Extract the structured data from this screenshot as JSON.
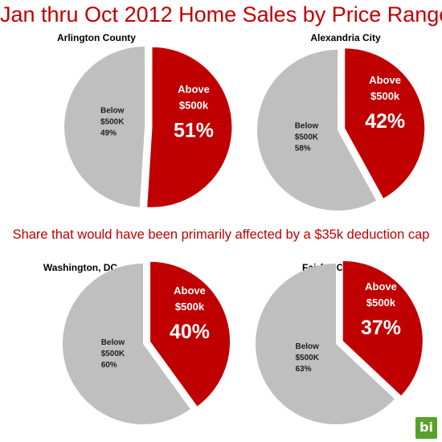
{
  "title": "Jan thru Oct 2012 Home Sales by Price Range",
  "subtitle": "Share that would have been primarily affected by a $35k deduction cap",
  "logo_text": "bi",
  "colors": {
    "above": "#c00000",
    "below": "#bfbfbf"
  },
  "chart_data": [
    {
      "type": "pie",
      "title": "Arlington County",
      "slices": [
        {
          "label_lines": [
            "Above",
            "$500k"
          ],
          "pct_label": "51%",
          "value": 51
        },
        {
          "label_lines": [
            "Below",
            "$500K"
          ],
          "pct_label": "49%",
          "value": 49
        }
      ]
    },
    {
      "type": "pie",
      "title": "Alexandria City",
      "slices": [
        {
          "label_lines": [
            "Above",
            "$500k"
          ],
          "pct_label": "42%",
          "value": 42
        },
        {
          "label_lines": [
            "Below",
            "$500K"
          ],
          "pct_label": "58%",
          "value": 58
        }
      ]
    },
    {
      "type": "pie",
      "title": "Washington, DC",
      "slices": [
        {
          "label_lines": [
            "Above",
            "$500k"
          ],
          "pct_label": "40%",
          "value": 40
        },
        {
          "label_lines": [
            "Below",
            "$500K"
          ],
          "pct_label": "60%",
          "value": 60
        }
      ]
    },
    {
      "type": "pie",
      "title": "Fairfax County",
      "slices": [
        {
          "label_lines": [
            "Above",
            "$500k"
          ],
          "pct_label": "37%",
          "value": 37
        },
        {
          "label_lines": [
            "Below",
            "$500K"
          ],
          "pct_label": "63%",
          "value": 63
        }
      ]
    }
  ]
}
